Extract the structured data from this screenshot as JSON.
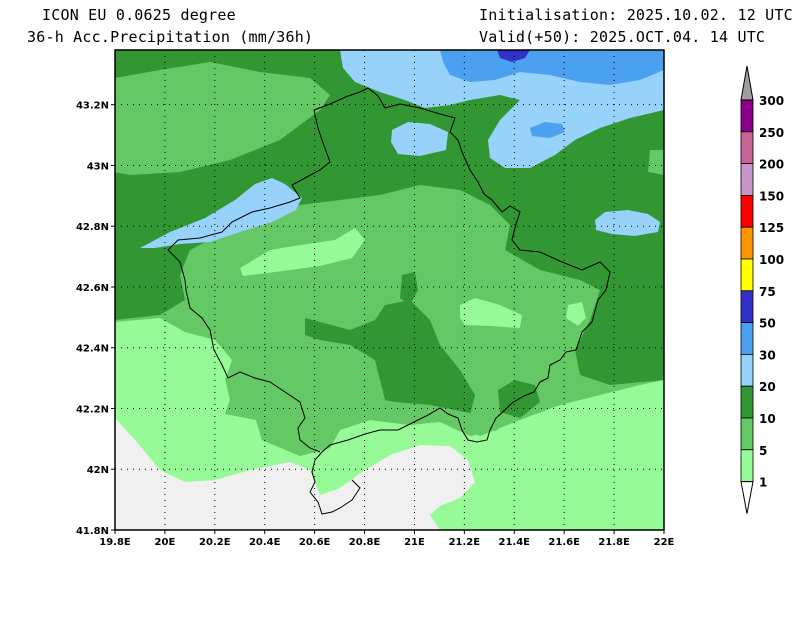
{
  "header": {
    "model": "ICON EU 0.0625 degree",
    "field": "36-h Acc.Precipitation (mm/36h)",
    "init": "Initialisation: 2025.10.02. 12 UTC",
    "valid": "Valid(+50): 2025.OCT.04. 14 UTC"
  },
  "axes": {
    "lat_labels": [
      "43.2N",
      "43N",
      "42.8N",
      "42.6N",
      "42.4N",
      "42.2N",
      "42N",
      "41.8N"
    ],
    "lon_labels": [
      "19.8E",
      "20E",
      "20.2E",
      "20.4E",
      "20.6E",
      "20.8E",
      "21E",
      "21.2E",
      "21.4E",
      "21.6E",
      "21.8E",
      "22E"
    ],
    "lat_range": [
      41.8,
      43.38
    ],
    "lon_range": [
      19.8,
      22.0
    ]
  },
  "colorbar": {
    "levels": [
      "300",
      "250",
      "200",
      "150",
      "125",
      "100",
      "75",
      "50",
      "30",
      "20",
      "10",
      "5",
      "1"
    ],
    "colors": [
      "#8b008b",
      "#c86496",
      "#c896c8",
      "#ff0000",
      "#ff9600",
      "#ffff00",
      "#3232c8",
      "#4ba0f0",
      "#96d2fa",
      "#329632",
      "#64c864",
      "#96fa96"
    ],
    "over_color": "#a0a0a0",
    "under_color": "#ffffff"
  },
  "colors": {
    "no_precip": "#f0f0f0",
    "c1_5": "#96fa96",
    "c5_10": "#64c864",
    "c10_20": "#329632",
    "c20_30": "#96d2fa",
    "c30_50": "#4ba0f0",
    "c50_75": "#3232c8"
  }
}
